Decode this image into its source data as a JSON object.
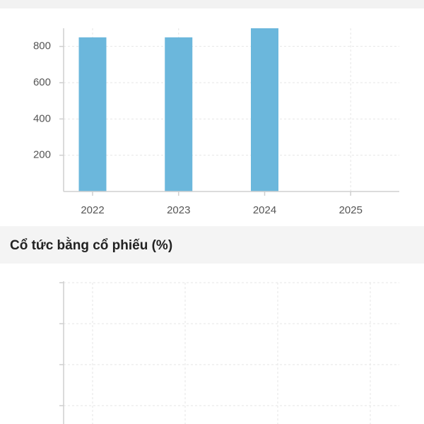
{
  "chart_data": {
    "type": "bar",
    "categories": [
      "2022",
      "2023",
      "2024",
      "2025"
    ],
    "values": [
      850,
      850,
      900,
      null
    ],
    "color": "#6bb7dc",
    "ylim": [
      0,
      900
    ],
    "yticks": [
      200,
      400,
      600,
      800
    ],
    "grid": true
  },
  "section": {
    "title": "Cổ tức bằng cổ phiếu (%)"
  }
}
